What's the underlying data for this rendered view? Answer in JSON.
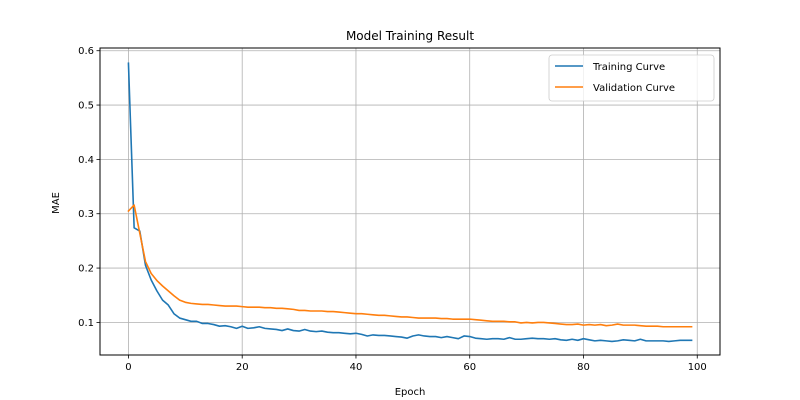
{
  "chart_data": {
    "type": "line",
    "title": "Model Training Result",
    "xlabel": "Epoch",
    "ylabel": "MAE",
    "xlim": [
      -5,
      104
    ],
    "ylim": [
      0.04,
      0.605
    ],
    "xticks": [
      0,
      20,
      40,
      60,
      80,
      100
    ],
    "yticks": [
      0.1,
      0.2,
      0.3,
      0.4,
      0.5,
      0.6
    ],
    "grid": true,
    "legend_position": "top-right",
    "series": [
      {
        "name": "Training Curve",
        "color": "#1f77b4",
        "x": [
          0,
          1,
          2,
          3,
          4,
          5,
          6,
          7,
          8,
          9,
          10,
          11,
          12,
          13,
          14,
          15,
          16,
          17,
          18,
          19,
          20,
          21,
          22,
          23,
          24,
          25,
          26,
          27,
          28,
          29,
          30,
          31,
          32,
          33,
          34,
          35,
          36,
          37,
          38,
          39,
          40,
          41,
          42,
          43,
          44,
          45,
          46,
          47,
          48,
          49,
          50,
          51,
          52,
          53,
          54,
          55,
          56,
          57,
          58,
          59,
          60,
          61,
          62,
          63,
          64,
          65,
          66,
          67,
          68,
          69,
          70,
          71,
          72,
          73,
          74,
          75,
          76,
          77,
          78,
          79,
          80,
          81,
          82,
          83,
          84,
          85,
          86,
          87,
          88,
          89,
          90,
          91,
          92,
          93,
          94,
          95,
          96,
          97,
          98,
          99
        ],
        "values": [
          0.577,
          0.274,
          0.268,
          0.205,
          0.178,
          0.158,
          0.141,
          0.132,
          0.116,
          0.108,
          0.105,
          0.102,
          0.102,
          0.098,
          0.098,
          0.096,
          0.093,
          0.094,
          0.092,
          0.089,
          0.093,
          0.089,
          0.09,
          0.092,
          0.089,
          0.088,
          0.087,
          0.085,
          0.088,
          0.085,
          0.084,
          0.087,
          0.084,
          0.083,
          0.084,
          0.082,
          0.081,
          0.081,
          0.08,
          0.079,
          0.08,
          0.078,
          0.075,
          0.077,
          0.076,
          0.076,
          0.075,
          0.074,
          0.073,
          0.071,
          0.075,
          0.077,
          0.075,
          0.074,
          0.074,
          0.072,
          0.074,
          0.072,
          0.07,
          0.075,
          0.074,
          0.071,
          0.07,
          0.069,
          0.07,
          0.07,
          0.069,
          0.072,
          0.069,
          0.069,
          0.07,
          0.071,
          0.07,
          0.07,
          0.069,
          0.07,
          0.068,
          0.067,
          0.069,
          0.067,
          0.07,
          0.068,
          0.066,
          0.067,
          0.066,
          0.065,
          0.066,
          0.068,
          0.067,
          0.066,
          0.069,
          0.066,
          0.066,
          0.066,
          0.066,
          0.065,
          0.066,
          0.067,
          0.067,
          0.067
        ]
      },
      {
        "name": "Validation Curve",
        "color": "#ff7f0e",
        "x": [
          0,
          1,
          2,
          3,
          4,
          5,
          6,
          7,
          8,
          9,
          10,
          11,
          12,
          13,
          14,
          15,
          16,
          17,
          18,
          19,
          20,
          21,
          22,
          23,
          24,
          25,
          26,
          27,
          28,
          29,
          30,
          31,
          32,
          33,
          34,
          35,
          36,
          37,
          38,
          39,
          40,
          41,
          42,
          43,
          44,
          45,
          46,
          47,
          48,
          49,
          50,
          51,
          52,
          53,
          54,
          55,
          56,
          57,
          58,
          59,
          60,
          61,
          62,
          63,
          64,
          65,
          66,
          67,
          68,
          69,
          70,
          71,
          72,
          73,
          74,
          75,
          76,
          77,
          78,
          79,
          80,
          81,
          82,
          83,
          84,
          85,
          86,
          87,
          88,
          89,
          90,
          91,
          92,
          93,
          94,
          95,
          96,
          97,
          98,
          99
        ],
        "values": [
          0.305,
          0.316,
          0.264,
          0.212,
          0.19,
          0.177,
          0.167,
          0.158,
          0.149,
          0.141,
          0.137,
          0.135,
          0.134,
          0.133,
          0.133,
          0.132,
          0.131,
          0.13,
          0.13,
          0.13,
          0.129,
          0.128,
          0.128,
          0.128,
          0.127,
          0.127,
          0.126,
          0.126,
          0.125,
          0.124,
          0.122,
          0.122,
          0.121,
          0.121,
          0.121,
          0.12,
          0.12,
          0.119,
          0.118,
          0.117,
          0.116,
          0.116,
          0.115,
          0.114,
          0.113,
          0.113,
          0.112,
          0.111,
          0.11,
          0.11,
          0.109,
          0.108,
          0.108,
          0.108,
          0.108,
          0.107,
          0.107,
          0.106,
          0.106,
          0.106,
          0.106,
          0.105,
          0.104,
          0.103,
          0.102,
          0.102,
          0.102,
          0.101,
          0.101,
          0.099,
          0.1,
          0.099,
          0.1,
          0.1,
          0.099,
          0.098,
          0.097,
          0.096,
          0.096,
          0.097,
          0.095,
          0.096,
          0.095,
          0.096,
          0.094,
          0.095,
          0.097,
          0.095,
          0.095,
          0.095,
          0.094,
          0.093,
          0.093,
          0.093,
          0.092,
          0.092,
          0.092,
          0.092,
          0.092,
          0.092
        ]
      }
    ]
  }
}
